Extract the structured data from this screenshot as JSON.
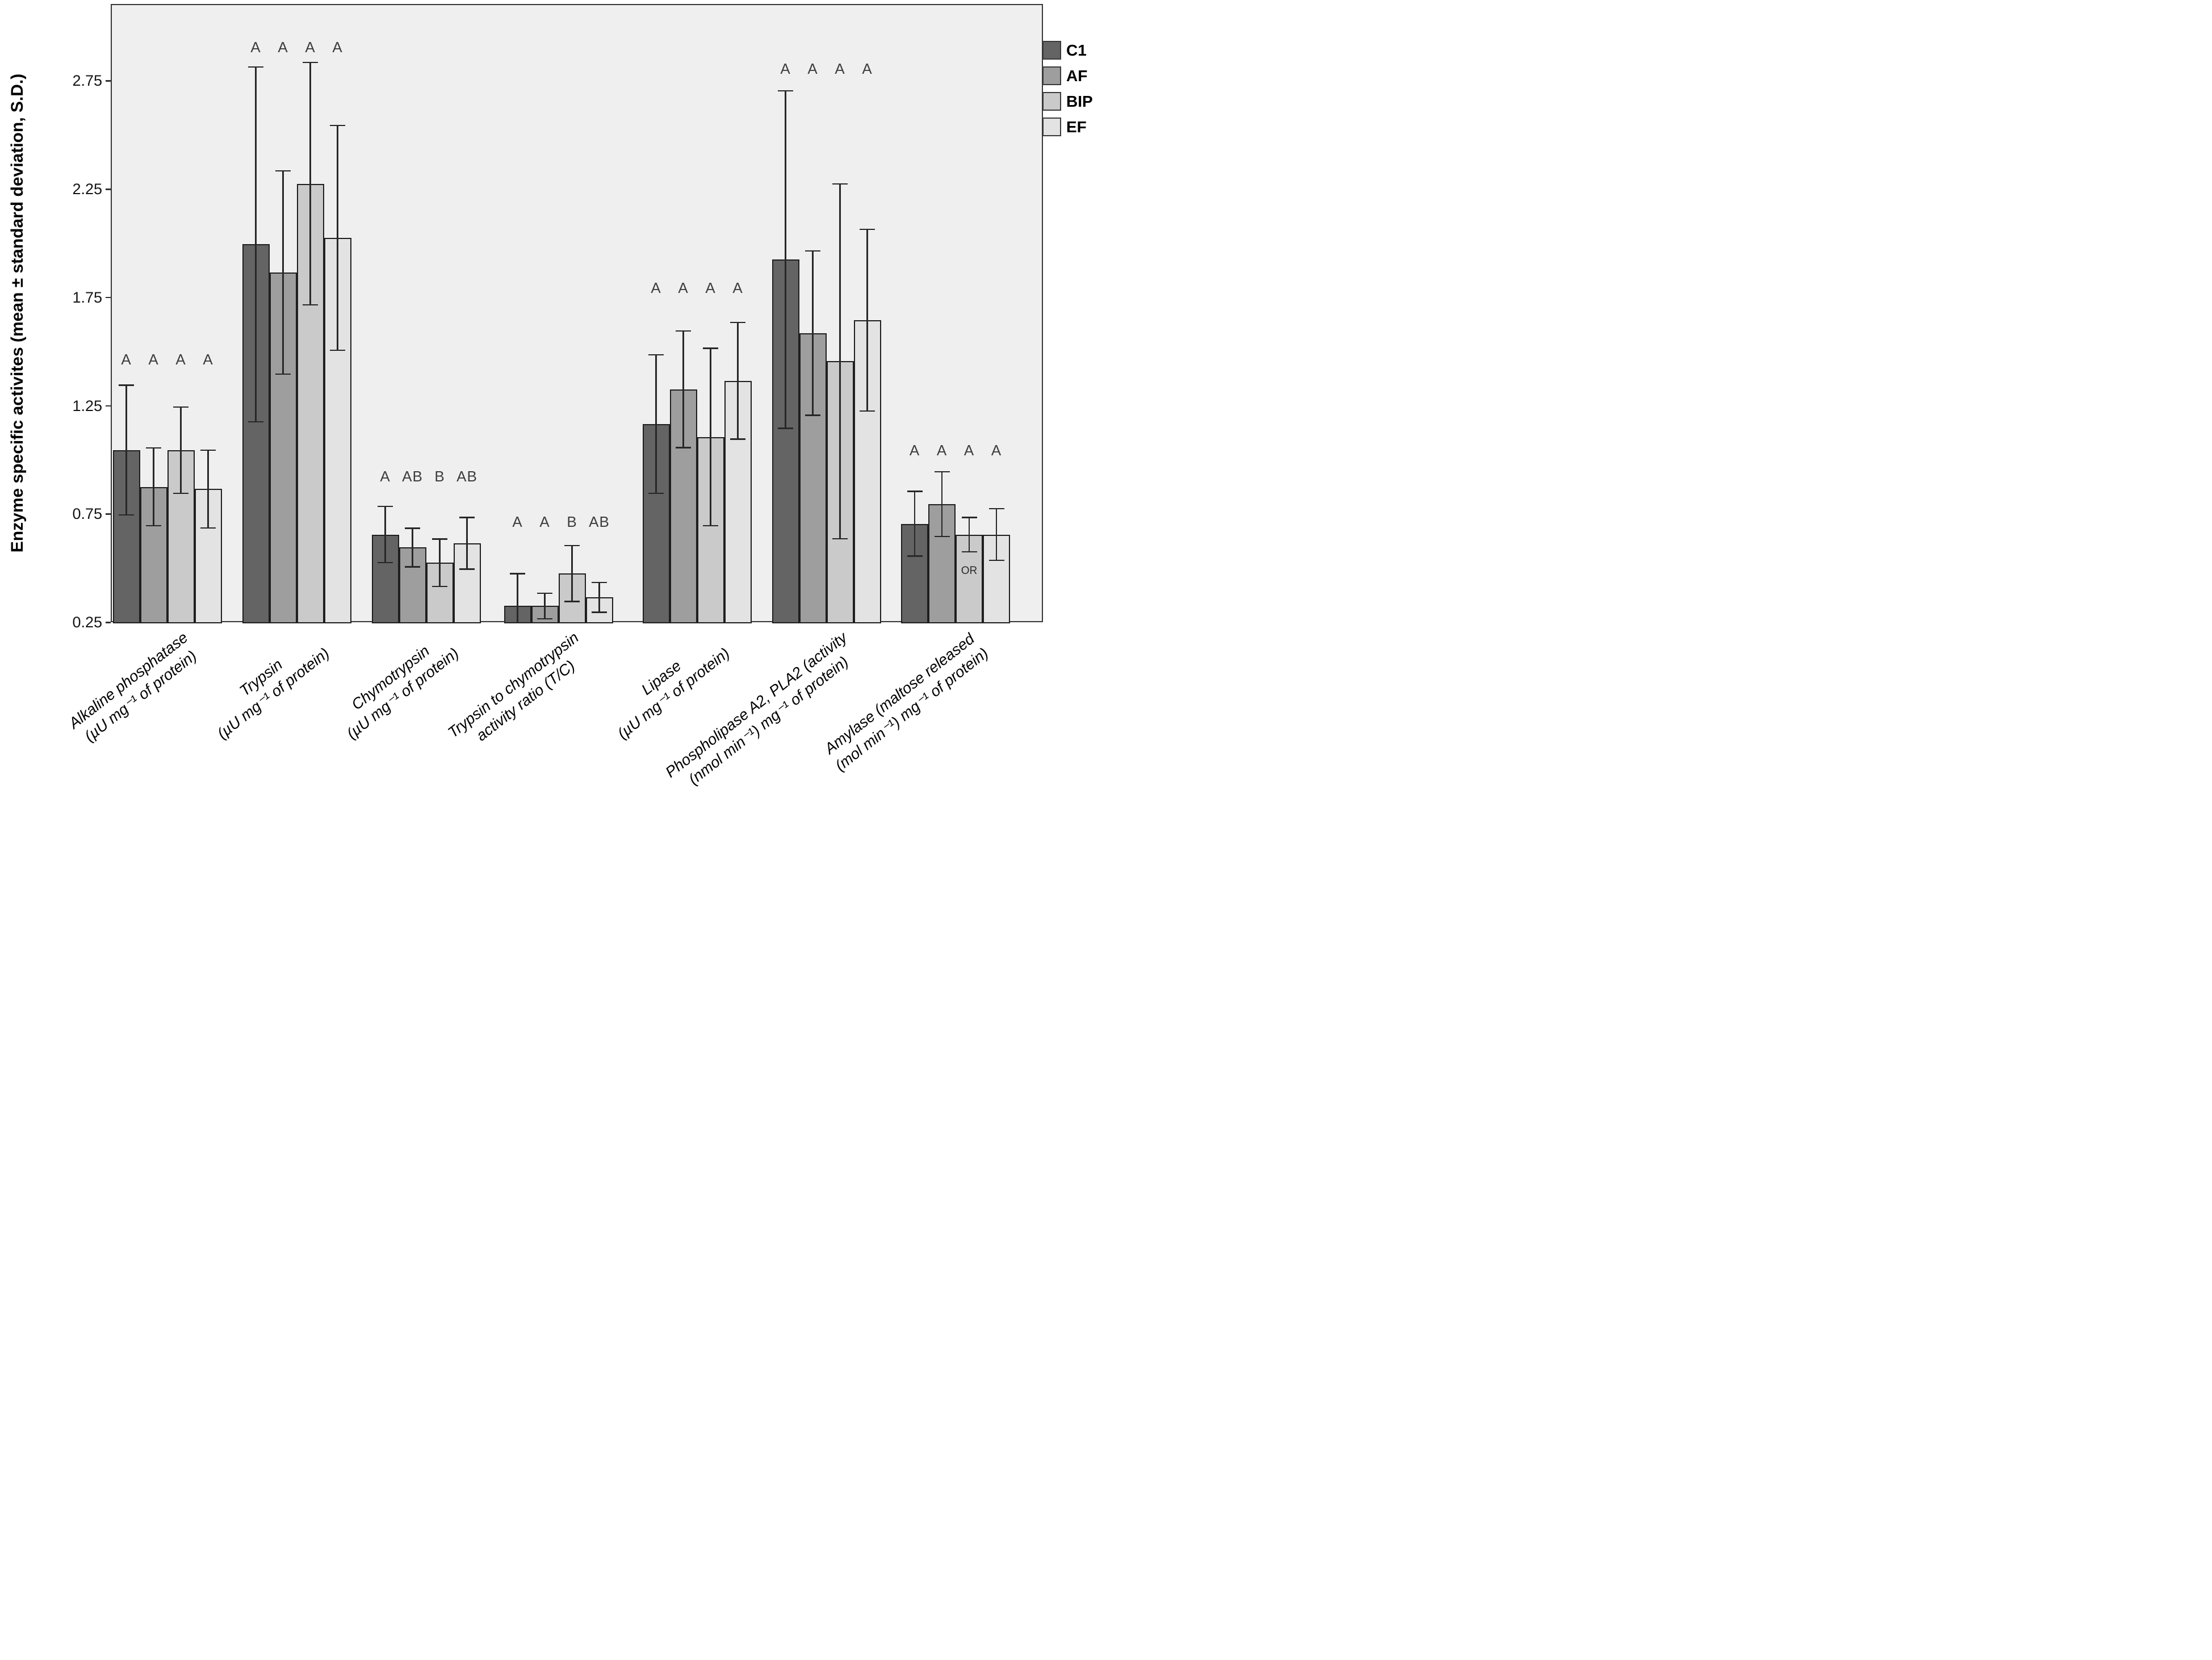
{
  "figure": {
    "background": "#ffffff",
    "plot_background": "#efefef",
    "frame_color": "#383838",
    "error_bar_color": "#282828"
  },
  "chart_data": {
    "type": "bar",
    "title": "",
    "xlabel": "",
    "ylabel": "Enzyme specific activites (mean ± standard deviation, S.D.)",
    "ylim": [
      0.25,
      3.1
    ],
    "yticks": [
      0.25,
      0.75,
      1.25,
      1.75,
      2.25,
      2.75
    ],
    "ytick_labels": [
      "0.25",
      "0.75",
      "1.25",
      "1.75",
      "2.25",
      "2.75"
    ],
    "grid": false,
    "error_bars": "mean ± S.D., capped, clipped at axis baseline",
    "legend": {
      "position": "outside-top-right",
      "entries": [
        {
          "name": "C1",
          "color": "#646464"
        },
        {
          "name": "AF",
          "color": "#9e9e9e"
        },
        {
          "name": "BIP",
          "color": "#cacaca"
        },
        {
          "name": "EF",
          "color": "#e3e3e3"
        }
      ]
    },
    "series_names": [
      "C1",
      "AF",
      "BIP",
      "EF"
    ],
    "groups": [
      {
        "label_lines": [
          "Alkaline phosphatase",
          "(µU mg⁻¹ of protein)"
        ],
        "letter_y": 1.47,
        "bars": [
          {
            "series": "C1",
            "mean": 1.05,
            "sd": 0.3,
            "letter": "A"
          },
          {
            "series": "AF",
            "mean": 0.88,
            "sd": 0.18,
            "letter": "A"
          },
          {
            "series": "BIP",
            "mean": 1.05,
            "sd": 0.2,
            "letter": "A"
          },
          {
            "series": "EF",
            "mean": 0.87,
            "sd": 0.18,
            "letter": "A"
          }
        ]
      },
      {
        "label_lines": [
          "Trypsin",
          "(µU mg⁻¹ of protein)"
        ],
        "letter_y": 2.91,
        "bars": [
          {
            "series": "C1",
            "mean": 2.0,
            "sd": 0.82,
            "letter": "A"
          },
          {
            "series": "AF",
            "mean": 1.87,
            "sd": 0.47,
            "letter": "A"
          },
          {
            "series": "BIP",
            "mean": 2.28,
            "sd": 0.56,
            "letter": "A"
          },
          {
            "series": "EF",
            "mean": 2.03,
            "sd": 0.52,
            "letter": "A"
          }
        ]
      },
      {
        "label_lines": [
          "Chymotrypsin",
          "(µU mg⁻¹ of protein)"
        ],
        "letter_y": 0.93,
        "bars": [
          {
            "series": "C1",
            "mean": 0.66,
            "sd": 0.13,
            "letter": "A"
          },
          {
            "series": "AF",
            "mean": 0.6,
            "sd": 0.09,
            "letter": "AB"
          },
          {
            "series": "BIP",
            "mean": 0.53,
            "sd": 0.11,
            "letter": "B"
          },
          {
            "series": "EF",
            "mean": 0.62,
            "sd": 0.12,
            "letter": "AB"
          }
        ]
      },
      {
        "label_lines": [
          "Trypsin to chymotrypsin",
          "activity ratio (T/C)"
        ],
        "letter_y": 0.72,
        "bars": [
          {
            "series": "C1",
            "mean": 0.33,
            "sd": 0.15,
            "letter": "A"
          },
          {
            "series": "AF",
            "mean": 0.33,
            "sd": 0.06,
            "letter": "A"
          },
          {
            "series": "BIP",
            "mean": 0.48,
            "sd": 0.13,
            "letter": "B"
          },
          {
            "series": "EF",
            "mean": 0.37,
            "sd": 0.07,
            "letter": "AB"
          }
        ]
      },
      {
        "label_lines": [
          "Lipase",
          "(µU mg⁻¹ of protein)"
        ],
        "letter_y": 1.8,
        "bars": [
          {
            "series": "C1",
            "mean": 1.17,
            "sd": 0.32,
            "letter": "A"
          },
          {
            "series": "AF",
            "mean": 1.33,
            "sd": 0.27,
            "letter": "A"
          },
          {
            "series": "BIP",
            "mean": 1.11,
            "sd": 0.41,
            "letter": "A"
          },
          {
            "series": "EF",
            "mean": 1.37,
            "sd": 0.27,
            "letter": "A"
          }
        ]
      },
      {
        "label_lines": [
          "Phospholipase A2, PLA2 (activity",
          "(nmol min⁻¹) mg⁻¹ of protein)"
        ],
        "letter_y": 2.81,
        "bars": [
          {
            "series": "C1",
            "mean": 1.93,
            "sd": 0.78,
            "letter": "A"
          },
          {
            "series": "AF",
            "mean": 1.59,
            "sd": 0.38,
            "letter": "A"
          },
          {
            "series": "BIP",
            "mean": 1.46,
            "sd": 0.82,
            "letter": "A"
          },
          {
            "series": "EF",
            "mean": 1.65,
            "sd": 0.42,
            "letter": "A"
          }
        ]
      },
      {
        "label_lines": [
          "Amylase (maltose released",
          "(mol min⁻¹) mg⁻¹ of protein)"
        ],
        "letter_y": 1.05,
        "bars": [
          {
            "series": "C1",
            "mean": 0.71,
            "sd": 0.15,
            "letter": "A"
          },
          {
            "series": "AF",
            "mean": 0.8,
            "sd": 0.15,
            "letter": "A"
          },
          {
            "series": "BIP",
            "mean": 0.66,
            "sd": 0.08,
            "letter": "A",
            "annotation": "OR",
            "annotation_y": 0.49
          },
          {
            "series": "EF",
            "mean": 0.66,
            "sd": 0.12,
            "letter": "A"
          }
        ]
      }
    ]
  }
}
